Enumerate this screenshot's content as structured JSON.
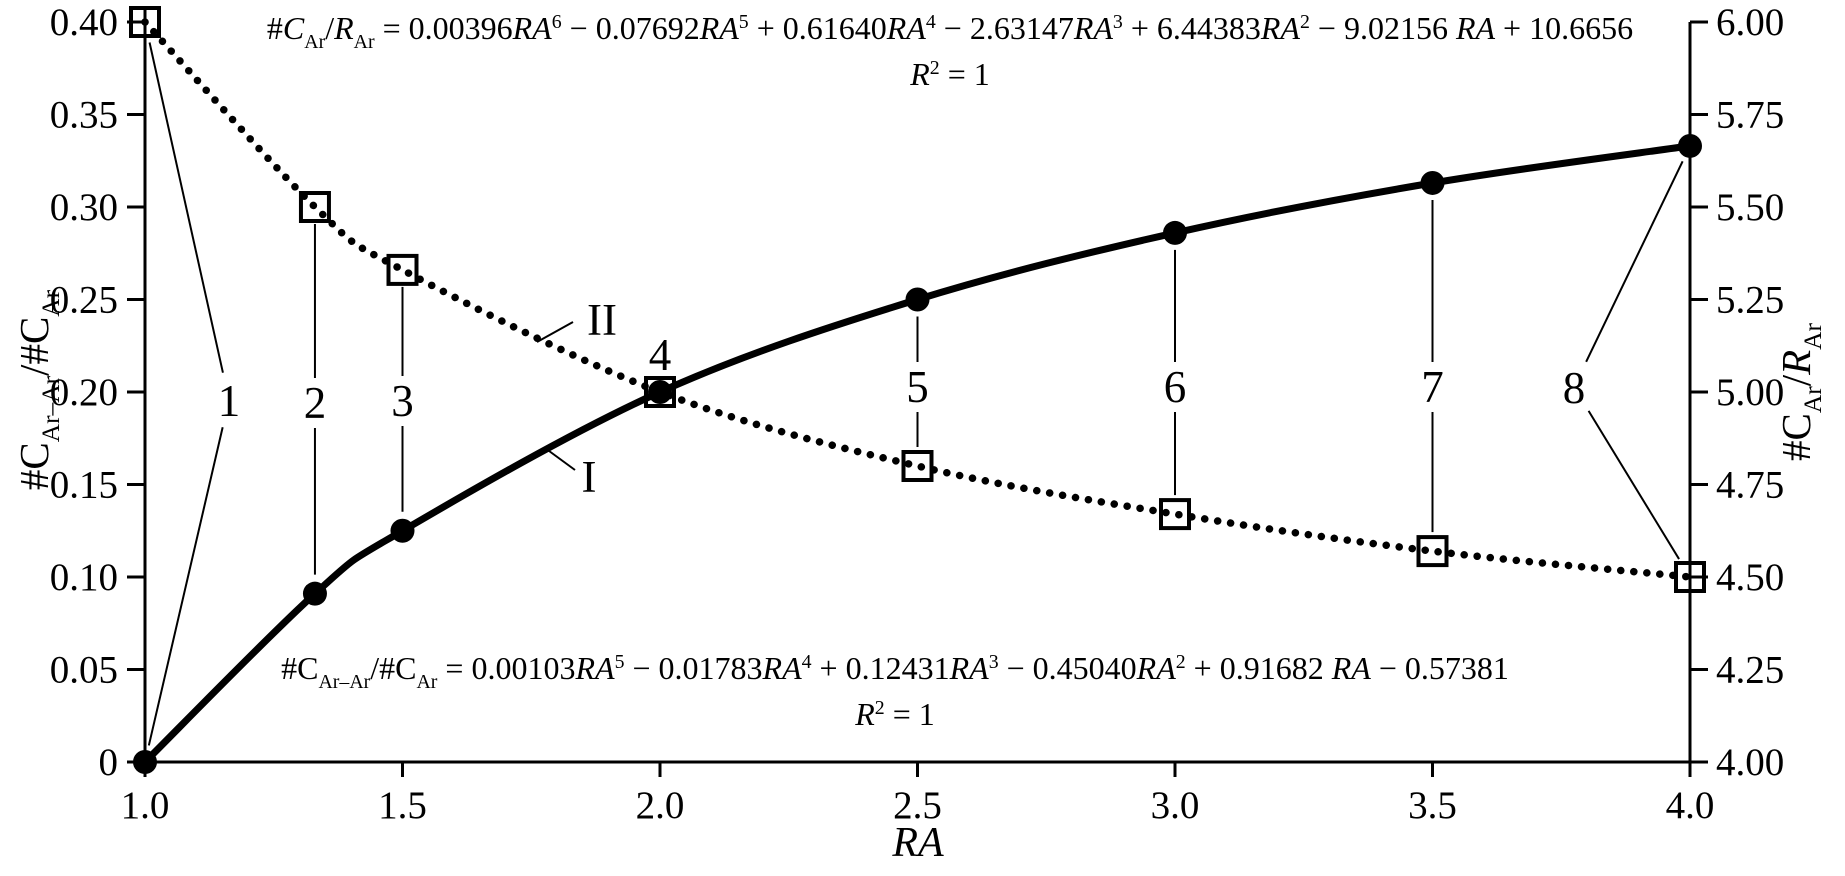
{
  "figure": {
    "background": "#ffffff",
    "foreground": "#000000"
  },
  "axes": {
    "x": {
      "label": [
        {
          "t": "RA",
          "i": true
        }
      ],
      "ticks": [
        "1.0",
        "1.5",
        "2.0",
        "2.5",
        "3.0",
        "3.5",
        "4.0"
      ],
      "range": [
        1.0,
        4.0
      ]
    },
    "y_left": {
      "label": [
        {
          "t": "#C"
        },
        {
          "t": "Ar–Ar",
          "sub": true
        },
        {
          "t": "/#C"
        },
        {
          "t": "Ar",
          "sub": true
        }
      ],
      "ticks": [
        "0.40",
        "0.35",
        "0.30",
        "0.25",
        "0.20",
        "0.15",
        "0.10",
        "0.05",
        "0"
      ],
      "range": [
        0,
        0.4
      ]
    },
    "y_right": {
      "label": [
        {
          "t": "#C"
        },
        {
          "t": "Ar",
          "sub": true
        },
        {
          "t": "/"
        },
        {
          "t": "R",
          "i": true
        },
        {
          "t": "Ar",
          "sub": true
        }
      ],
      "ticks": [
        "6.00",
        "5.75",
        "5.50",
        "5.25",
        "5.00",
        "4.75",
        "4.50",
        "4.25",
        "4.00"
      ],
      "range": [
        4.0,
        6.0
      ]
    }
  },
  "equations": {
    "top": {
      "line1": [
        {
          "t": "#"
        },
        {
          "t": "C",
          "i": true
        },
        {
          "t": "Ar",
          "sub": true
        },
        {
          "t": "/"
        },
        {
          "t": "R",
          "i": true
        },
        {
          "t": "Ar",
          "sub": true
        },
        {
          "t": " = 0.00396"
        },
        {
          "t": "RA",
          "i": true
        },
        {
          "t": "6",
          "sup": true
        },
        {
          "t": " − 0.07692"
        },
        {
          "t": "RA",
          "i": true
        },
        {
          "t": "5",
          "sup": true
        },
        {
          "t": " + 0.61640"
        },
        {
          "t": "RA",
          "i": true
        },
        {
          "t": "4",
          "sup": true
        },
        {
          "t": " − 2.63147"
        },
        {
          "t": "RA",
          "i": true
        },
        {
          "t": "3",
          "sup": true
        },
        {
          "t": " + 6.44383"
        },
        {
          "t": "RA",
          "i": true
        },
        {
          "t": "2",
          "sup": true
        },
        {
          "t": " − 9.02156 "
        },
        {
          "t": "RA",
          "i": true
        },
        {
          "t": " + 10.6656"
        }
      ],
      "line2": [
        {
          "t": "R",
          "i": true
        },
        {
          "t": "2",
          "sup": true
        },
        {
          "t": " = 1"
        }
      ]
    },
    "bottom": {
      "line1": [
        {
          "t": "#C"
        },
        {
          "t": "Ar–Ar",
          "sub": true
        },
        {
          "t": "/#C"
        },
        {
          "t": "Ar",
          "sub": true
        },
        {
          "t": " = 0.00103"
        },
        {
          "t": "RA",
          "i": true
        },
        {
          "t": "5",
          "sup": true
        },
        {
          "t": " − 0.01783"
        },
        {
          "t": "RA",
          "i": true
        },
        {
          "t": "4",
          "sup": true
        },
        {
          "t": " + 0.12431"
        },
        {
          "t": "RA",
          "i": true
        },
        {
          "t": "3",
          "sup": true
        },
        {
          "t": " − 0.45040"
        },
        {
          "t": "RA",
          "i": true
        },
        {
          "t": "2",
          "sup": true
        },
        {
          "t": " + 0.91682 "
        },
        {
          "t": "RA",
          "i": true
        },
        {
          "t": " − 0.57381"
        }
      ],
      "line2": [
        {
          "t": "R",
          "i": true
        },
        {
          "t": "2",
          "sup": true
        },
        {
          "t": " = 1"
        }
      ]
    }
  },
  "curve_labels": {
    "solid": "I",
    "dotted": "II"
  },
  "chart_data": {
    "type": "line",
    "x": [
      1.0,
      1.33,
      1.5,
      2.0,
      2.5,
      3.0,
      3.5,
      4.0
    ],
    "series": [
      {
        "name": "I",
        "description": "#C_Ar–Ar/#C_Ar — solid line, filled circle markers, left axis",
        "axis": "left",
        "marker": "circle",
        "line": "solid",
        "values": [
          0.0,
          0.091,
          0.125,
          0.2,
          0.25,
          0.286,
          0.313,
          0.333
        ]
      },
      {
        "name": "II",
        "description": "#C_Ar/R_Ar — dotted line, open square markers, right axis",
        "axis": "right",
        "marker": "square",
        "line": "dotted",
        "values": [
          6.0,
          5.5,
          5.33,
          5.0,
          4.8,
          4.67,
          4.57,
          4.5
        ]
      }
    ],
    "point_labels": [
      "1",
      "2",
      "3",
      "4",
      "5",
      "6",
      "7",
      "8"
    ],
    "xlabel": "RA",
    "ylabel_left": "#C_Ar–Ar/#C_Ar",
    "ylabel_right": "#C_Ar/R_Ar",
    "xlim": [
      1.0,
      4.0
    ],
    "ylim_left": [
      0,
      0.4
    ],
    "ylim_right": [
      4.0,
      6.0
    ],
    "grid": false,
    "legend_position": "none",
    "annotations": [
      "#C_Ar/R_Ar = 0.00396RA^6 − 0.07692RA^5 + 0.61640RA^4 − 2.63147RA^3 + 6.44383RA^2 − 9.02156 RA + 10.6656, R^2 = 1",
      "#C_Ar–Ar/#C_Ar = 0.00103RA^5 − 0.01783RA^4 + 0.12431RA^3 − 0.45040RA^2 + 0.91682 RA − 0.57381, R^2 = 1"
    ]
  }
}
